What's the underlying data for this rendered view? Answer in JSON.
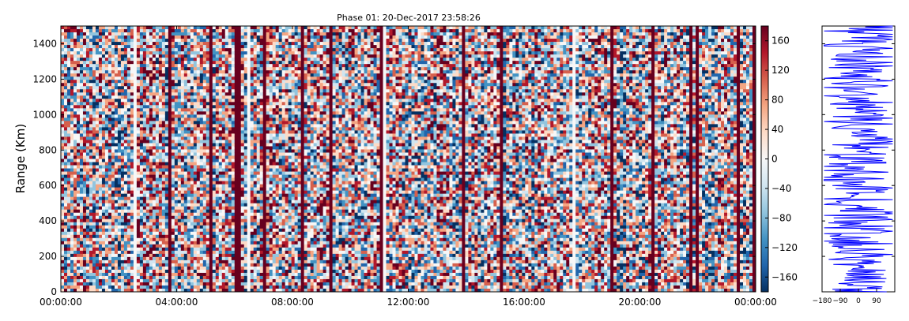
{
  "chart_data": {
    "type": "heatmap",
    "title": "Phase 01: 20-Dec-2017 23:58:26",
    "ylabel": "Range (Km)",
    "xlabel": "",
    "x_ticks": [
      "00:00:00",
      "04:00:00",
      "08:00:00",
      "12:00:00",
      "16:00:00",
      "20:00:00",
      "00:00:00"
    ],
    "x_range_hours": [
      0,
      24
    ],
    "y_ticks": [
      0,
      200,
      400,
      600,
      800,
      1000,
      1200,
      1400
    ],
    "ylim": [
      0,
      1500
    ],
    "colorbar": {
      "ticks": [
        160,
        120,
        80,
        40,
        0,
        -40,
        -80,
        -120,
        -160
      ],
      "range": [
        -180,
        180
      ],
      "colormap": "RdBu_r",
      "colors": [
        "#053061",
        "#2166ac",
        "#4393c3",
        "#92c5de",
        "#d1e5f0",
        "#f7f7f7",
        "#fddbc7",
        "#f4a582",
        "#d6604d",
        "#b2182b",
        "#67001f"
      ]
    },
    "profile": {
      "type": "line",
      "x_ticks": [
        "−180",
        "−90",
        "0",
        "90"
      ],
      "xlim": [
        -180,
        180
      ],
      "ylim": [
        0,
        1500
      ],
      "color": "#0000ff"
    }
  }
}
